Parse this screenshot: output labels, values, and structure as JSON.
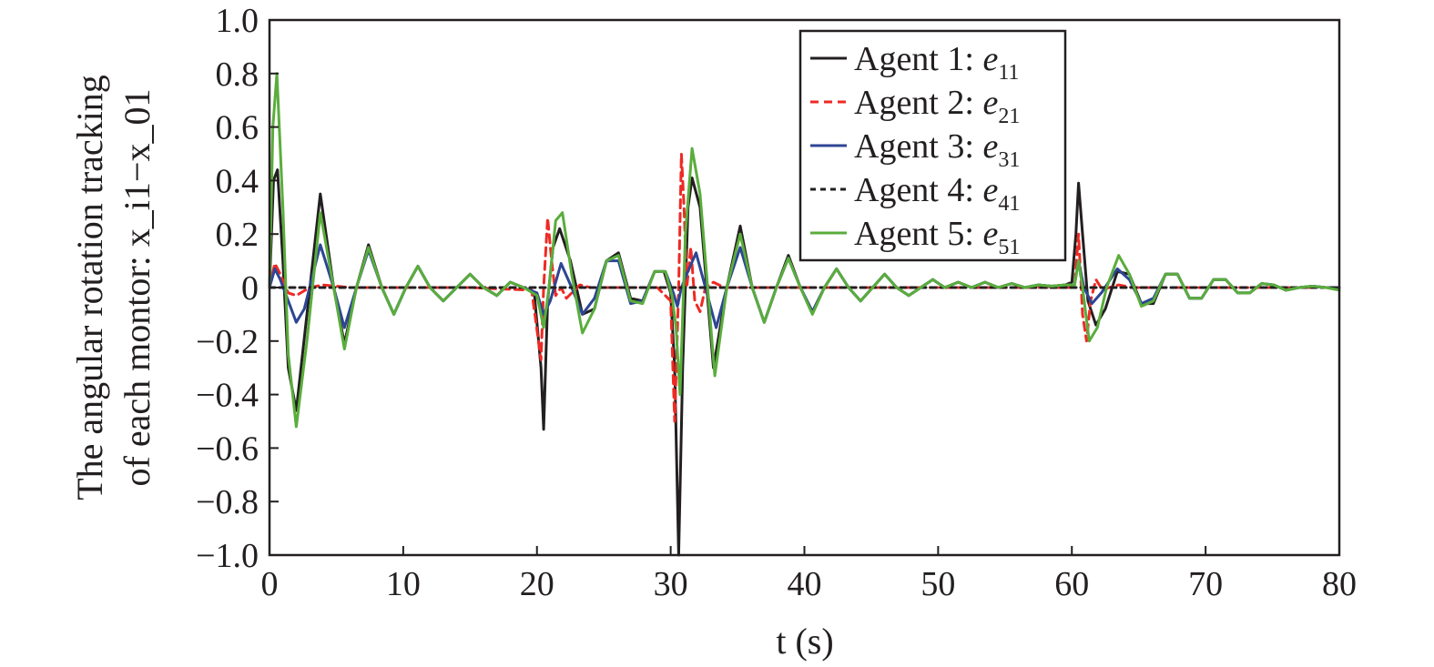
{
  "chart_data": {
    "type": "line",
    "title": "",
    "xlabel": "t (s)",
    "ylabel_line1": "The angular rotation tracking",
    "ylabel_line2": "of each montor: x_i1−x_01",
    "xlim": [
      0,
      80
    ],
    "ylim": [
      -1.0,
      1.0
    ],
    "xticks": [
      0,
      10,
      20,
      30,
      40,
      50,
      60,
      70,
      80
    ],
    "xtick_labels": [
      "0",
      "10",
      "20",
      "30",
      "40",
      "50",
      "60",
      "70",
      "80"
    ],
    "yticks": [
      1.0,
      0.8,
      0.6,
      0.4,
      0.2,
      0,
      -0.2,
      -0.4,
      -0.6,
      -0.8,
      -1.0
    ],
    "ytick_labels": [
      "1.0",
      "0.8",
      "0.6",
      "0.4",
      "0.2",
      "0",
      "−0.2",
      "−0.4",
      "−0.6",
      "−0.8",
      "−1.0"
    ],
    "grid": false,
    "legend_position": "top-right",
    "series": [
      {
        "name": "Agent 1: e11",
        "label_prefix": "Agent 1: ",
        "label_var": "e",
        "label_sub": "11",
        "color": "#231f20",
        "dash": "solid",
        "x": [
          0,
          0.3,
          0.6,
          1.0,
          1.4,
          2.0,
          2.8,
          3.8,
          4.8,
          5.6,
          6.5,
          7.4,
          8.4,
          9.3,
          10.2,
          11.1,
          12.0,
          13.0,
          14.0,
          15.0,
          16.0,
          17.0,
          18.0,
          19.0,
          19.8,
          20.3,
          20.5,
          20.8,
          21.2,
          21.7,
          22.5,
          23.4,
          24.3,
          25.2,
          26.1,
          27.0,
          27.9,
          28.8,
          29.5,
          30.0,
          30.3,
          30.6,
          30.9,
          31.3,
          31.6,
          32.2,
          33.2,
          34.2,
          35.2,
          36.1,
          37.0,
          37.9,
          38.8,
          39.7,
          40.6,
          41.5,
          42.4,
          43.3,
          44.2,
          45.1,
          46.0,
          46.9,
          47.8,
          48.7,
          49.6,
          50.5,
          51.5,
          52.5,
          53.5,
          54.5,
          55.5,
          56.5,
          57.5,
          58.5,
          59.5,
          60.0,
          60.3,
          60.5,
          60.8,
          61.2,
          61.8,
          62.5,
          63.4,
          64.3,
          65.2,
          66.1,
          67.0,
          67.9,
          68.8,
          69.7,
          70.6,
          71.5,
          72.4,
          73.3,
          74.2,
          75.1,
          76.0,
          77.0,
          78.0,
          79.0,
          80.0
        ],
        "y": [
          0,
          0.4,
          0.44,
          0.1,
          -0.3,
          -0.46,
          -0.1,
          0.35,
          0.0,
          -0.21,
          0.0,
          0.16,
          0.0,
          -0.1,
          0.0,
          0.08,
          0.0,
          -0.05,
          0.0,
          0.05,
          0.0,
          -0.03,
          0.02,
          0.0,
          -0.02,
          -0.3,
          -0.53,
          -0.05,
          0.15,
          0.22,
          0.1,
          -0.1,
          -0.08,
          0.1,
          0.13,
          -0.04,
          -0.05,
          0.06,
          0.06,
          -0.02,
          -0.3,
          -1.0,
          -0.3,
          0.3,
          0.41,
          0.3,
          -0.3,
          0.0,
          0.23,
          0.0,
          -0.13,
          0.0,
          0.12,
          0.0,
          -0.09,
          0.0,
          0.07,
          0.0,
          -0.05,
          0.0,
          0.05,
          0.0,
          -0.03,
          0.0,
          0.03,
          0.0,
          0.02,
          0.0,
          0.02,
          0.0,
          0.015,
          0.0,
          0.01,
          0.005,
          0.01,
          0.02,
          0.2,
          0.39,
          0.2,
          -0.05,
          -0.14,
          -0.08,
          0.06,
          0.05,
          -0.06,
          -0.06,
          0.05,
          0.05,
          -0.04,
          -0.04,
          0.03,
          0.03,
          -0.02,
          -0.02,
          0.015,
          0.01,
          -0.01,
          0.0,
          0.005,
          0.0,
          0.0
        ]
      },
      {
        "name": "Agent 2: e21",
        "label_prefix": "Agent 2: ",
        "label_var": "e",
        "label_sub": "21",
        "color": "#ee2a24",
        "dash": "9,6",
        "x": [
          0,
          0.4,
          0.8,
          1.4,
          2.0,
          3.0,
          4.0,
          6.0,
          10,
          15,
          19.6,
          20.3,
          20.5,
          20.8,
          21.1,
          21.4,
          21.8,
          22.2,
          22.6,
          23.2,
          24.0,
          26.0,
          29.0,
          30.0,
          30.3,
          30.6,
          30.8,
          31.0,
          31.2,
          31.5,
          31.8,
          32.2,
          32.6,
          33.2,
          34.0,
          36.0,
          40.0,
          50.0,
          59.8,
          60.2,
          60.5,
          60.8,
          61.1,
          61.4,
          61.8,
          62.3,
          62.8,
          63.5,
          64.5,
          66.0,
          70.0,
          80.0
        ],
        "y": [
          0,
          0.09,
          0.05,
          -0.02,
          -0.03,
          0.0,
          0.01,
          0.0,
          0.0,
          0.0,
          -0.01,
          -0.27,
          0.0,
          0.26,
          0.1,
          -0.03,
          0.0,
          -0.04,
          -0.02,
          0.01,
          0.0,
          0.0,
          0.0,
          -0.05,
          -0.5,
          0.0,
          0.5,
          0.3,
          0.0,
          0.15,
          -0.05,
          -0.09,
          0.0,
          0.02,
          0.0,
          0.0,
          0.0,
          0.0,
          0.0,
          0.0,
          0.2,
          -0.1,
          -0.2,
          -0.05,
          0.03,
          -0.01,
          0.0,
          0.01,
          0.0,
          0.0,
          0.0,
          0.0
        ]
      },
      {
        "name": "Agent 3: e31",
        "label_prefix": "Agent 3: ",
        "label_var": "e",
        "label_sub": "31",
        "color": "#2e4595",
        "dash": "solid",
        "x": [
          0,
          0.4,
          0.8,
          1.4,
          2.0,
          2.6,
          3.8,
          4.8,
          5.6,
          6.5,
          7.4,
          8.4,
          9.3,
          10.2,
          11.1,
          12.0,
          13.0,
          14.0,
          15.0,
          16.0,
          17.0,
          18.0,
          19.0,
          20.0,
          20.5,
          21.0,
          21.8,
          22.6,
          23.4,
          24.3,
          25.2,
          26.1,
          27.0,
          27.9,
          28.8,
          29.6,
          30.2,
          30.5,
          30.8,
          31.2,
          31.9,
          32.6,
          33.4,
          34.2,
          35.2,
          36.1,
          37.0,
          37.9,
          38.8,
          39.7,
          40.6,
          41.5,
          42.4,
          43.3,
          44.2,
          45.1,
          46.0,
          46.9,
          47.8,
          48.7,
          49.6,
          50.5,
          51.5,
          52.5,
          53.5,
          54.5,
          55.5,
          56.5,
          57.5,
          58.5,
          59.5,
          60.2,
          60.5,
          60.9,
          61.5,
          62.2,
          63.4,
          64.3,
          65.2,
          66.1,
          67.0,
          67.9,
          68.8,
          69.7,
          70.6,
          71.5,
          72.4,
          73.3,
          74.2,
          75.1,
          76.0,
          77.0,
          78.0,
          79.0,
          80.0
        ],
        "y": [
          0,
          0.07,
          0.03,
          -0.05,
          -0.13,
          -0.08,
          0.16,
          0.0,
          -0.15,
          0.0,
          0.14,
          0.0,
          -0.1,
          0.0,
          0.08,
          0.0,
          -0.05,
          0.0,
          0.05,
          0.0,
          -0.03,
          0.02,
          0.0,
          -0.02,
          -0.1,
          -0.05,
          0.09,
          0.0,
          -0.1,
          -0.04,
          0.1,
          0.1,
          -0.06,
          -0.05,
          0.06,
          0.06,
          -0.02,
          -0.07,
          0.0,
          0.05,
          0.13,
          0.0,
          -0.15,
          0.0,
          0.15,
          0.0,
          -0.13,
          0.0,
          0.11,
          0.0,
          -0.09,
          0.0,
          0.07,
          0.0,
          -0.05,
          0.0,
          0.05,
          0.0,
          -0.03,
          0.0,
          0.03,
          0.0,
          0.02,
          0.0,
          0.02,
          0.0,
          0.015,
          0.0,
          0.01,
          0.005,
          0.01,
          0.01,
          0.1,
          0.0,
          -0.06,
          -0.02,
          0.07,
          0.03,
          -0.06,
          -0.04,
          0.05,
          0.05,
          -0.04,
          -0.04,
          0.03,
          0.03,
          -0.02,
          -0.02,
          0.015,
          0.01,
          -0.01,
          0.0,
          0.005,
          0.0,
          0.0
        ]
      },
      {
        "name": "Agent 4: e41",
        "label_prefix": "Agent 4: ",
        "label_var": "e",
        "label_sub": "41",
        "color": "#231f20",
        "dash": "6,5",
        "x": [
          0,
          10,
          20,
          30,
          40,
          50,
          60,
          70,
          80
        ],
        "y": [
          0,
          0,
          0,
          0,
          0,
          0,
          0,
          0,
          0
        ]
      },
      {
        "name": "Agent 5: e51",
        "label_prefix": "Agent 5: ",
        "label_var": "e",
        "label_sub": "51",
        "color": "#5aad3c",
        "dash": "solid",
        "x": [
          0,
          0.25,
          0.55,
          1.0,
          1.4,
          2.0,
          2.8,
          3.8,
          4.8,
          5.6,
          6.5,
          7.4,
          8.4,
          9.3,
          10.2,
          11.1,
          12.0,
          13.0,
          14.0,
          15.0,
          16.0,
          17.0,
          18.0,
          19.0,
          20.0,
          20.5,
          20.9,
          21.4,
          21.9,
          22.6,
          23.4,
          24.3,
          25.2,
          26.1,
          27.0,
          27.9,
          28.8,
          29.6,
          30.1,
          30.4,
          30.7,
          31.1,
          31.6,
          32.2,
          33.3,
          34.2,
          35.2,
          36.1,
          37.0,
          37.9,
          38.8,
          39.7,
          40.6,
          41.5,
          42.4,
          43.3,
          44.2,
          45.1,
          46.0,
          46.9,
          47.8,
          48.7,
          49.6,
          50.5,
          51.5,
          52.5,
          53.5,
          54.5,
          55.5,
          56.5,
          57.5,
          58.5,
          59.5,
          60.2,
          60.5,
          60.8,
          61.3,
          61.9,
          62.6,
          63.5,
          64.3,
          65.2,
          66.1,
          67.0,
          67.9,
          68.8,
          69.7,
          70.6,
          71.5,
          72.4,
          73.3,
          74.2,
          75.1,
          76.0,
          77.0,
          78.0,
          79.0,
          80.0
        ],
        "y": [
          0,
          0.6,
          0.8,
          0.3,
          -0.25,
          -0.52,
          -0.2,
          0.28,
          0.0,
          -0.23,
          0.0,
          0.15,
          0.0,
          -0.1,
          0.0,
          0.08,
          0.0,
          -0.05,
          0.0,
          0.05,
          0.0,
          -0.03,
          0.02,
          0.0,
          -0.03,
          -0.15,
          0.0,
          0.25,
          0.28,
          0.05,
          -0.17,
          -0.08,
          0.1,
          0.12,
          -0.05,
          -0.06,
          0.06,
          0.06,
          -0.03,
          -0.15,
          -0.4,
          0.2,
          0.52,
          0.35,
          -0.33,
          0.0,
          0.2,
          0.0,
          -0.13,
          0.0,
          0.11,
          0.0,
          -0.1,
          0.0,
          0.07,
          0.0,
          -0.05,
          0.0,
          0.05,
          0.0,
          -0.03,
          0.0,
          0.03,
          0.0,
          0.02,
          0.0,
          0.02,
          0.0,
          0.015,
          0.0,
          0.01,
          0.005,
          0.01,
          0.01,
          0.1,
          0.0,
          -0.2,
          -0.15,
          0.0,
          0.12,
          0.05,
          -0.07,
          -0.05,
          0.05,
          0.05,
          -0.04,
          -0.04,
          0.03,
          0.03,
          -0.02,
          -0.02,
          0.015,
          0.01,
          -0.01,
          0.0,
          0.005,
          0.0,
          -0.01
        ]
      }
    ]
  }
}
